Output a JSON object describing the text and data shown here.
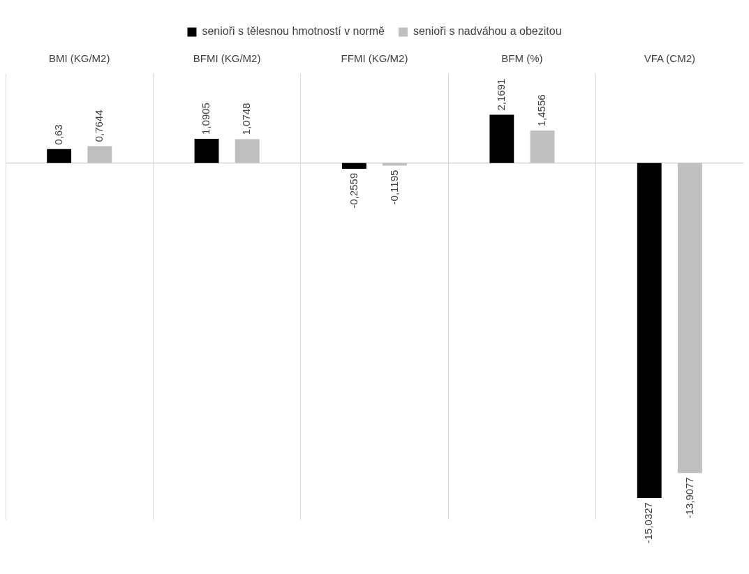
{
  "chart_data": {
    "type": "bar",
    "categories": [
      "BMI (KG/M2)",
      "BFMI (KG/M2)",
      "FFMI (KG/M2)",
      "BFM (%)",
      "VFA (CM2)"
    ],
    "series": [
      {
        "name": "senioři s tělesnou hmotností v normě",
        "color": "#000000",
        "values": [
          0.63,
          1.0905,
          -0.2559,
          2.1691,
          -15.0327
        ],
        "value_labels": [
          "0,63",
          "1,0905",
          "-0,2559",
          "2,1691",
          "-15,0327"
        ]
      },
      {
        "name": "senioři s nadváhou a obezitou",
        "color": "#bfbfbf",
        "values": [
          0.7644,
          1.0748,
          -0.1195,
          1.4556,
          -13.9077
        ],
        "value_labels": [
          "0,7644",
          "1,0748",
          "-0,1195",
          "1,4556",
          "-13,9077"
        ]
      }
    ],
    "grid": "x",
    "legend": "top"
  }
}
